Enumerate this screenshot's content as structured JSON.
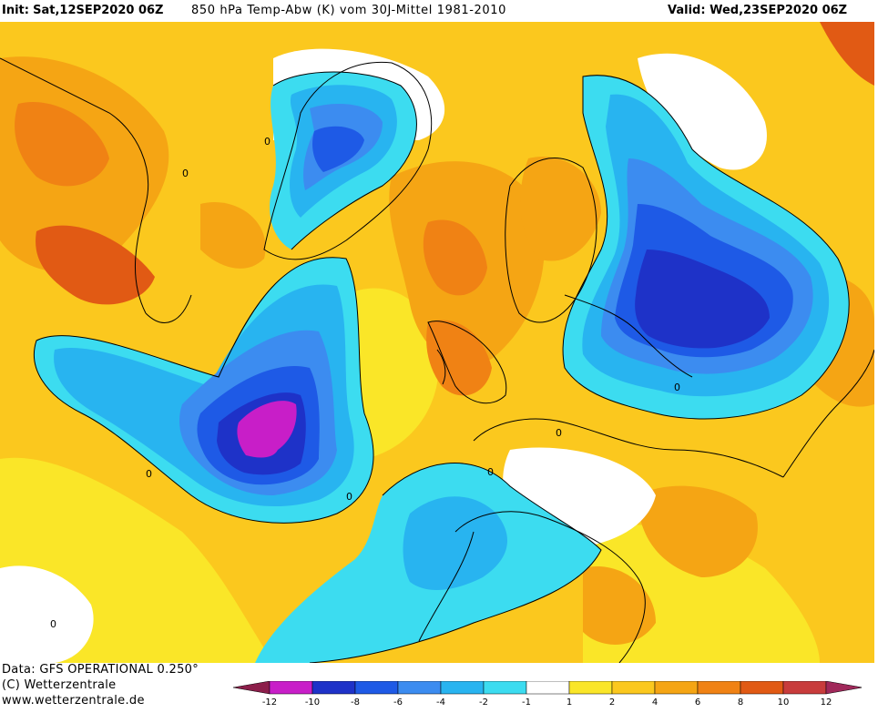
{
  "header": {
    "init_label": "Init:",
    "init_value": "Sat,12SEP2020 06Z",
    "parameter": "850 hPa Temp-Abw (K) vom 30J-Mittel 1981-2010",
    "valid": "Valid: Wed,23SEP2020 06Z"
  },
  "footer": {
    "data_line": "Data: GFS OPERATIONAL 0.250°",
    "copyright": "(C) Wetterzentrale",
    "url": "www.wetterzentrale.de"
  },
  "legend": {
    "ticks": [
      "-12",
      "-10",
      "-8",
      "-6",
      "-4",
      "-2",
      "-1",
      "1",
      "2",
      "4",
      "6",
      "8",
      "10",
      "12"
    ],
    "colors": {
      "lt_-12": "#8c1e4a",
      "-12_-10": "#c81ec8",
      "-10_-8": "#1e32c8",
      "-8_-6": "#1e5ae6",
      "-6_-4": "#3c8cf0",
      "-4_-2": "#28b4f0",
      "-2_-1": "#3cdcf0",
      "-1_1": "#ffffff",
      "1_2": "#fae628",
      "2_4": "#fbc81e",
      "4_6": "#f5a514",
      "6_8": "#f08214",
      "8_10": "#e15a14",
      "10_12": "#c83c3c",
      "gt_12": "#a0285a"
    }
  },
  "map_labels": {
    "contour_zero": "0"
  }
}
